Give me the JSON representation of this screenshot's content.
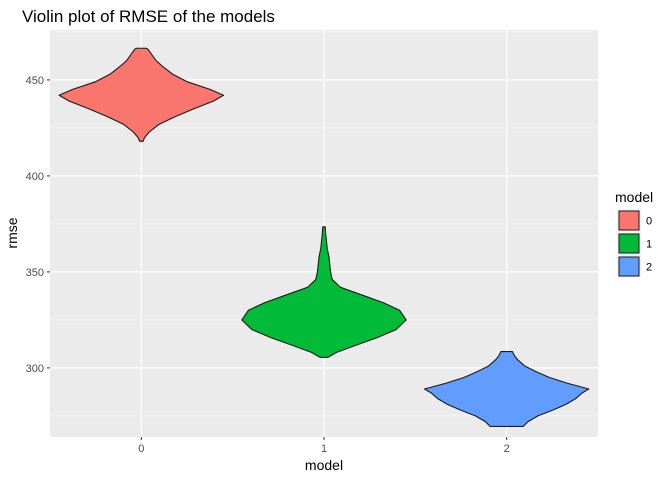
{
  "chart_data": {
    "type": "violin",
    "title": "Violin plot of RMSE of the models",
    "xlabel": "model",
    "ylabel": "rmse",
    "categories": [
      "0",
      "1",
      "2"
    ],
    "ylim": [
      264,
      476
    ],
    "yticks": [
      300,
      350,
      400,
      450
    ],
    "grid": true,
    "legend": {
      "title": "model",
      "placement": "right",
      "entries": [
        "0",
        "1",
        "2"
      ]
    },
    "colors": [
      "#F8766D",
      "#00BA38",
      "#619CFF"
    ],
    "outline_color": "#1a1a1a",
    "panel_background": "#EBEBEB",
    "series": [
      {
        "category": "0",
        "density": [
          [
            418,
            0.02
          ],
          [
            420,
            0.04
          ],
          [
            423,
            0.1
          ],
          [
            427,
            0.22
          ],
          [
            431,
            0.42
          ],
          [
            435,
            0.64
          ],
          [
            439,
            0.88
          ],
          [
            442,
            1.0
          ],
          [
            445,
            0.84
          ],
          [
            449,
            0.56
          ],
          [
            453,
            0.38
          ],
          [
            457,
            0.26
          ],
          [
            460,
            0.18
          ],
          [
            463,
            0.13
          ],
          [
            466,
            0.08
          ],
          [
            466.5,
            0.06
          ]
        ]
      },
      {
        "category": "1",
        "density": [
          [
            305.5,
            0.05
          ],
          [
            308,
            0.15
          ],
          [
            312,
            0.4
          ],
          [
            316,
            0.66
          ],
          [
            320,
            0.88
          ],
          [
            325,
            1.0
          ],
          [
            330,
            0.92
          ],
          [
            334,
            0.72
          ],
          [
            338,
            0.46
          ],
          [
            342,
            0.2
          ],
          [
            346,
            0.1
          ],
          [
            350,
            0.08
          ],
          [
            354,
            0.07
          ],
          [
            358,
            0.06
          ],
          [
            362,
            0.04
          ],
          [
            366,
            0.03
          ],
          [
            370,
            0.02
          ],
          [
            373.5,
            0.015
          ]
        ]
      },
      {
        "category": "2",
        "density": [
          [
            269.5,
            0.2
          ],
          [
            272,
            0.26
          ],
          [
            275,
            0.38
          ],
          [
            278,
            0.56
          ],
          [
            281,
            0.72
          ],
          [
            284,
            0.84
          ],
          [
            287,
            0.92
          ],
          [
            289,
            1.0
          ],
          [
            292,
            0.74
          ],
          [
            295,
            0.52
          ],
          [
            298,
            0.36
          ],
          [
            301,
            0.22
          ],
          [
            304,
            0.14
          ],
          [
            306,
            0.1
          ],
          [
            308.5,
            0.07
          ]
        ]
      }
    ]
  }
}
